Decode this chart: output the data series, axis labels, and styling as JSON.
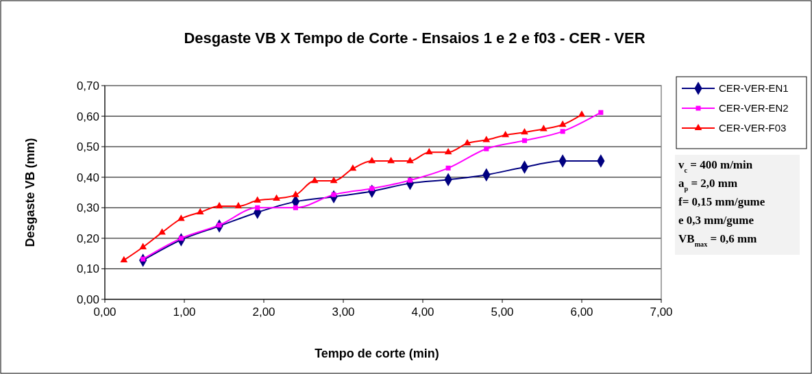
{
  "chart_data": {
    "type": "line",
    "title": "Desgaste VB X Tempo de Corte - Ensaios 1 e 2 e f03 - CER - VER",
    "xlabel": "Tempo de corte (min)",
    "ylabel": "Desgaste VB (mm)",
    "xlim": [
      0,
      7
    ],
    "xticks": [
      {
        "value": 0,
        "label": "0,00"
      },
      {
        "value": 1,
        "label": "1,00"
      },
      {
        "value": 2,
        "label": "2,00"
      },
      {
        "value": 3,
        "label": "3,00"
      },
      {
        "value": 4,
        "label": "4,00"
      },
      {
        "value": 5,
        "label": "5,00"
      },
      {
        "value": 6,
        "label": "6,00"
      },
      {
        "value": 7,
        "label": "7,00"
      }
    ],
    "ylim": [
      0,
      0.7
    ],
    "yticks": [
      {
        "value": 0,
        "label": "0,00"
      },
      {
        "value": 0.1,
        "label": "0,10"
      },
      {
        "value": 0.2,
        "label": "0,20"
      },
      {
        "value": 0.3,
        "label": "0,30"
      },
      {
        "value": 0.4,
        "label": "0,40"
      },
      {
        "value": 0.5,
        "label": "0,50"
      },
      {
        "value": 0.6,
        "label": "0,60"
      },
      {
        "value": 0.7,
        "label": "0,70"
      }
    ],
    "grid": "y",
    "legend": "right",
    "series": [
      {
        "name": "CER-VER-EN1",
        "color": "#000080",
        "marker": "diamond",
        "x": [
          0.48,
          0.96,
          1.44,
          1.92,
          2.4,
          2.88,
          3.36,
          3.84,
          4.32,
          4.8,
          5.28,
          5.76,
          6.24
        ],
        "values": [
          0.128,
          0.195,
          0.24,
          0.285,
          0.32,
          0.336,
          0.354,
          0.38,
          0.392,
          0.408,
          0.433,
          0.453,
          0.453
        ]
      },
      {
        "name": "CER-VER-EN2",
        "color": "#ff00ff",
        "marker": "square",
        "x": [
          0.48,
          0.96,
          1.44,
          1.92,
          2.4,
          2.88,
          3.36,
          3.84,
          4.32,
          4.8,
          5.28,
          5.76,
          6.24
        ],
        "values": [
          0.132,
          0.2,
          0.243,
          0.3,
          0.3,
          0.343,
          0.363,
          0.39,
          0.43,
          0.493,
          0.52,
          0.55,
          0.612
        ]
      },
      {
        "name": "CER-VER-F03",
        "color": "#ff0000",
        "marker": "triangle",
        "x": [
          0.24,
          0.48,
          0.72,
          0.96,
          1.2,
          1.44,
          1.68,
          1.92,
          2.16,
          2.4,
          2.64,
          2.88,
          3.12,
          3.36,
          3.6,
          3.84,
          4.08,
          4.32,
          4.56,
          4.8,
          5.04,
          5.28,
          5.52,
          5.76,
          6.0
        ],
        "values": [
          0.128,
          0.171,
          0.219,
          0.264,
          0.285,
          0.305,
          0.305,
          0.324,
          0.33,
          0.342,
          0.388,
          0.388,
          0.428,
          0.453,
          0.453,
          0.453,
          0.482,
          0.482,
          0.511,
          0.522,
          0.538,
          0.547,
          0.558,
          0.572,
          0.605
        ]
      }
    ],
    "annotations": [
      "v$_{c}$ = 400 m/min",
      "a$_{p}$ = 2,0 mm",
      "f= 0,15 mm/gume",
      "e 0,3 mm/gume",
      "VB$_{max}$ = 0,6 mm"
    ]
  }
}
